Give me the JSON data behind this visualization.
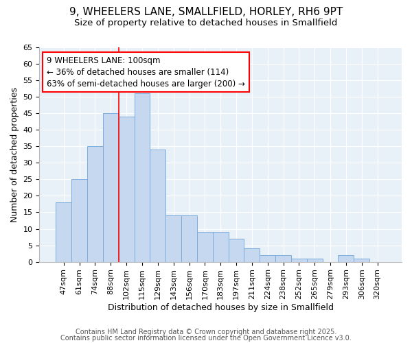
{
  "title_line1": "9, WHEELERS LANE, SMALLFIELD, HORLEY, RH6 9PT",
  "title_line2": "Size of property relative to detached houses in Smallfield",
  "xlabel": "Distribution of detached houses by size in Smallfield",
  "ylabel": "Number of detached properties",
  "bar_labels": [
    "47sqm",
    "61sqm",
    "74sqm",
    "88sqm",
    "102sqm",
    "115sqm",
    "129sqm",
    "143sqm",
    "156sqm",
    "170sqm",
    "183sqm",
    "197sqm",
    "211sqm",
    "224sqm",
    "238sqm",
    "252sqm",
    "265sqm",
    "279sqm",
    "293sqm",
    "306sqm",
    "320sqm"
  ],
  "bar_values": [
    18,
    25,
    35,
    45,
    44,
    51,
    34,
    14,
    14,
    9,
    9,
    7,
    4,
    2,
    2,
    1,
    1,
    0,
    2,
    1,
    0
  ],
  "bar_color": "#c5d8f0",
  "bar_edge_color": "#7aacdc",
  "background_color": "#e8f0f8",
  "red_line_index": 4,
  "annotation_text": "9 WHEELERS LANE: 100sqm\n← 36% of detached houses are smaller (114)\n63% of semi-detached houses are larger (200) →",
  "annotation_box_color": "white",
  "annotation_box_edge": "red",
  "footer_line1": "Contains HM Land Registry data © Crown copyright and database right 2025.",
  "footer_line2": "Contains public sector information licensed under the Open Government Licence v3.0.",
  "ylim": [
    0,
    65
  ],
  "yticks": [
    0,
    5,
    10,
    15,
    20,
    25,
    30,
    35,
    40,
    45,
    50,
    55,
    60,
    65
  ],
  "title_fontsize": 11,
  "subtitle_fontsize": 9.5,
  "axis_label_fontsize": 9,
  "tick_fontsize": 8,
  "annotation_fontsize": 8.5,
  "footer_fontsize": 7
}
